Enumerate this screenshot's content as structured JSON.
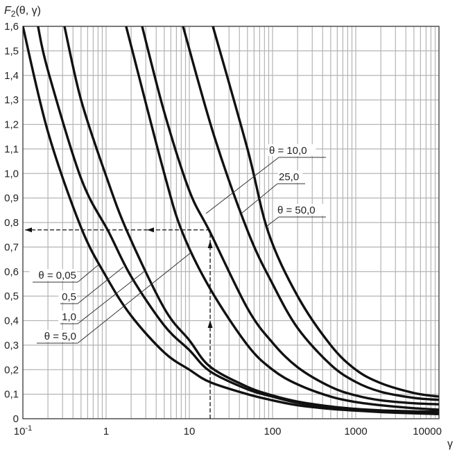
{
  "chart_data": {
    "type": "line",
    "title": "F2(θ, γ)",
    "ylabel_main": "F",
    "ylabel_sub": "2",
    "ylabel_rest": "(θ, γ)",
    "xlabel": "γ",
    "xscale": "log",
    "xlim": [
      0.1,
      10000
    ],
    "ylim": [
      0,
      1.6
    ],
    "grid": true,
    "x_ticks": [
      {
        "value": 0.1,
        "label": "10",
        "sup": "-1"
      },
      {
        "value": 1,
        "label": "1"
      },
      {
        "value": 10,
        "label": "10"
      },
      {
        "value": 100,
        "label": "100"
      },
      {
        "value": 1000,
        "label": "1000"
      },
      {
        "value": 10000,
        "label": "10000"
      }
    ],
    "y_ticks": [
      {
        "value": 0,
        "label": "0"
      },
      {
        "value": 0.1,
        "label": "0,1"
      },
      {
        "value": 0.2,
        "label": "0,2"
      },
      {
        "value": 0.3,
        "label": "0,3"
      },
      {
        "value": 0.4,
        "label": "0,4"
      },
      {
        "value": 0.5,
        "label": "0,5"
      },
      {
        "value": 0.6,
        "label": "0,6"
      },
      {
        "value": 0.7,
        "label": "0,7"
      },
      {
        "value": 0.8,
        "label": "0,8"
      },
      {
        "value": 0.9,
        "label": "0,9"
      },
      {
        "value": 1.0,
        "label": "1,0"
      },
      {
        "value": 1.1,
        "label": "1,1"
      },
      {
        "value": 1.2,
        "label": "1,2"
      },
      {
        "value": 1.3,
        "label": "1,3"
      },
      {
        "value": 1.4,
        "label": "1,4"
      },
      {
        "value": 1.5,
        "label": "1,5"
      },
      {
        "value": 1.6,
        "label": "1,6"
      }
    ],
    "series": [
      {
        "name": "θ = 0,05",
        "x": [
          0.1,
          0.2,
          0.5,
          1,
          2,
          5,
          10,
          17.8,
          50,
          100,
          200,
          500,
          1000,
          2000,
          5000,
          10000
        ],
        "y": [
          1.6,
          1.17,
          0.78,
          0.58,
          0.42,
          0.27,
          0.2,
          0.149,
          0.1,
          0.075,
          0.055,
          0.04,
          0.033,
          0.027,
          0.022,
          0.019
        ]
      },
      {
        "name": "0,5",
        "x": [
          0.152,
          0.2,
          0.5,
          1.08,
          2,
          5,
          10,
          17.8,
          50,
          100,
          200,
          500,
          1000,
          2000,
          5000,
          10000
        ],
        "y": [
          1.6,
          1.42,
          0.98,
          0.76,
          0.58,
          0.38,
          0.28,
          0.193,
          0.12,
          0.09,
          0.065,
          0.045,
          0.036,
          0.03,
          0.026,
          0.024
        ]
      },
      {
        "name": "1,0",
        "x": [
          0.316,
          0.5,
          1,
          1.81,
          5,
          10,
          17.8,
          50,
          100,
          200,
          500,
          1000,
          2000,
          5000,
          10000
        ],
        "y": [
          1.6,
          1.3,
          0.99,
          0.76,
          0.45,
          0.32,
          0.212,
          0.13,
          0.095,
          0.07,
          0.05,
          0.04,
          0.034,
          0.03,
          0.029
        ]
      },
      {
        "name": "θ = 5,0",
        "x": [
          1.74,
          2,
          5,
          8.25,
          17.8,
          50,
          100,
          200,
          500,
          1000,
          2000,
          5000,
          10000
        ],
        "y": [
          1.6,
          1.52,
          1.0,
          0.76,
          0.53,
          0.3,
          0.2,
          0.14,
          0.09,
          0.068,
          0.055,
          0.043,
          0.037
        ]
      },
      {
        "name": "θ = 10,0",
        "x": [
          2.71,
          5,
          10,
          17.8,
          50,
          100,
          200,
          500,
          1000,
          2000,
          5000,
          10000
        ],
        "y": [
          1.6,
          1.25,
          0.93,
          0.76,
          0.45,
          0.31,
          0.21,
          0.13,
          0.095,
          0.075,
          0.063,
          0.059
        ]
      },
      {
        "name": "25,0",
        "x": [
          8.4,
          20,
          51,
          100,
          200,
          500,
          1000,
          2000,
          5000,
          10000
        ],
        "y": [
          1.6,
          1.15,
          0.76,
          0.55,
          0.37,
          0.22,
          0.15,
          0.11,
          0.085,
          0.077
        ]
      },
      {
        "name": "θ = 50,0",
        "x": [
          19.2,
          50,
          89,
          200,
          500,
          1000,
          2000,
          5000,
          10000
        ],
        "y": [
          1.6,
          1.1,
          0.76,
          0.5,
          0.3,
          0.2,
          0.145,
          0.105,
          0.09
        ]
      }
    ],
    "annotations": {
      "example_gamma": 17.8,
      "example_F": 0.77
    }
  }
}
